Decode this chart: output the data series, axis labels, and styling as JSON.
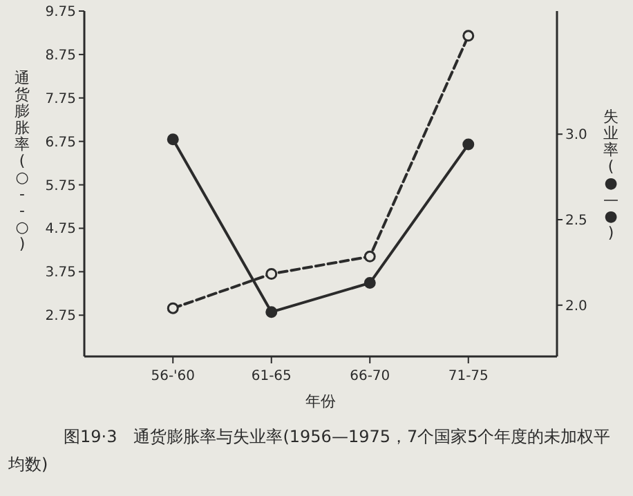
{
  "chart_data": {
    "type": "line",
    "categories": [
      "56-'60",
      "61-65",
      "66-70",
      "71-75"
    ],
    "xlabel": "年份",
    "ylabel": "通货膨胀率 (○--○)",
    "y2label": "失业率 (●—●)",
    "ylim": [
      1.8,
      9.75
    ],
    "yticks": [
      2.75,
      3.75,
      4.75,
      5.75,
      6.75,
      7.75,
      8.75,
      9.75
    ],
    "y2lim": [
      1.7,
      3.72
    ],
    "y2ticks": [
      {
        "value": 2,
        "label": "2.0"
      },
      2.5,
      {
        "value": 3,
        "label": "3.0"
      }
    ],
    "series": [
      {
        "color": "#2b2b2b",
        "values": [
          2.91,
          3.7,
          4.1,
          9.18
        ],
        "line_style": "dashed",
        "marker": "circle"
      },
      {
        "color": "#2b2b2b",
        "values": [
          2.97,
          1.96,
          2.13,
          2.94
        ],
        "axis": "y2",
        "line_style": "solid",
        "marker": "circle"
      }
    ],
    "grid": false,
    "annotations": [
      "图19·3　通货膨胀率与失业率(1956—1975，7个国家5个年度的未加权平均数)"
    ]
  }
}
